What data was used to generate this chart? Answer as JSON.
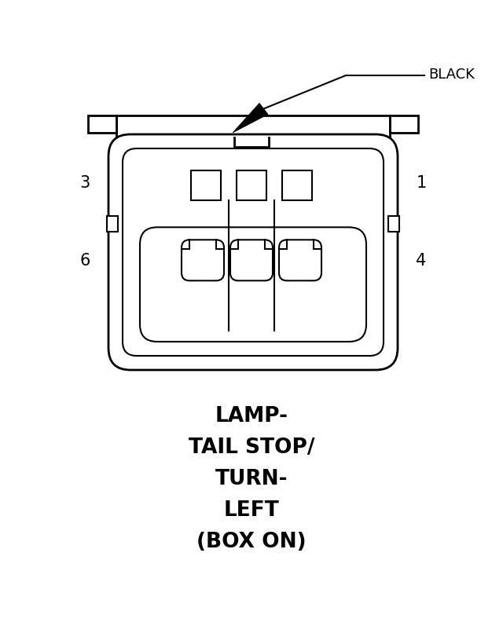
{
  "bg_color": "#ffffff",
  "line_color": "#000000",
  "title_lines": [
    "LAMP-",
    "TAIL STOP/",
    "TURN-",
    "LEFT",
    "(BOX ON)"
  ],
  "label_black": "BLACK",
  "title_fontsize": 19,
  "label_fontsize": 13,
  "pin_label_fontsize": 15
}
